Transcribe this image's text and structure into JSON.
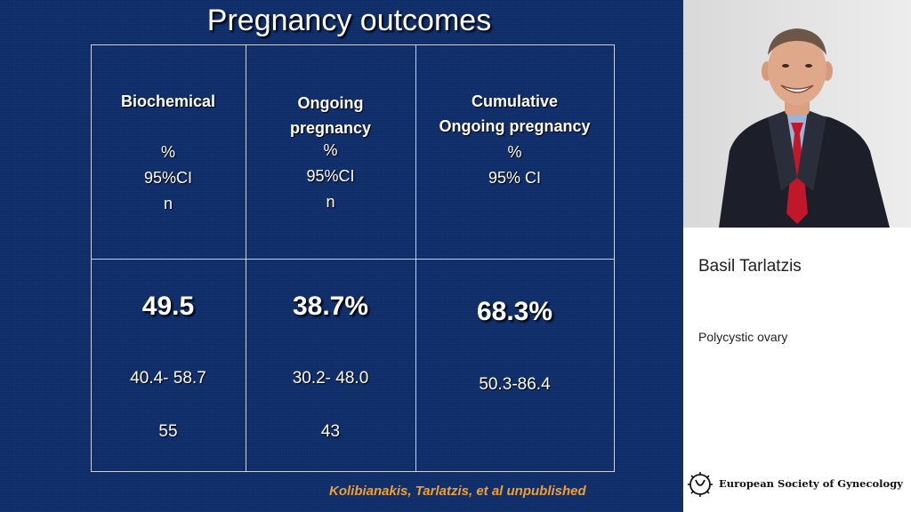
{
  "slide": {
    "title": "Pregnancy outcomes",
    "columns": [
      {
        "header_bold": [
          "Biochemical"
        ],
        "header_plain": [
          "%",
          "95%CI",
          "n"
        ],
        "value": "49.5",
        "ci": "40.4- 58.7",
        "n": "55"
      },
      {
        "header_bold": [
          "Ongoing",
          "pregnancy"
        ],
        "header_plain": [
          "%",
          "95%CI",
          "n"
        ],
        "value": "38.7%",
        "ci": "30.2- 48.0",
        "n": "43"
      },
      {
        "header_bold": [
          "Cumulative",
          "Ongoing pregnancy"
        ],
        "header_plain": [
          "%",
          "95% CI"
        ],
        "value": "68.3%",
        "ci": "50.3-86.4",
        "n": ""
      }
    ],
    "citation": "Kolibianakis, Tarlatzis, et al unpublished",
    "colors": {
      "background": "#0f2e6b",
      "text": "#ffffff",
      "citation": "#f0a030"
    }
  },
  "panel": {
    "speaker_name": "Basil Tarlatzis",
    "talk_topic": "Polycystic ovary",
    "society_name": "European Society of Gynecology",
    "photo_icon": "speaker-photo"
  }
}
